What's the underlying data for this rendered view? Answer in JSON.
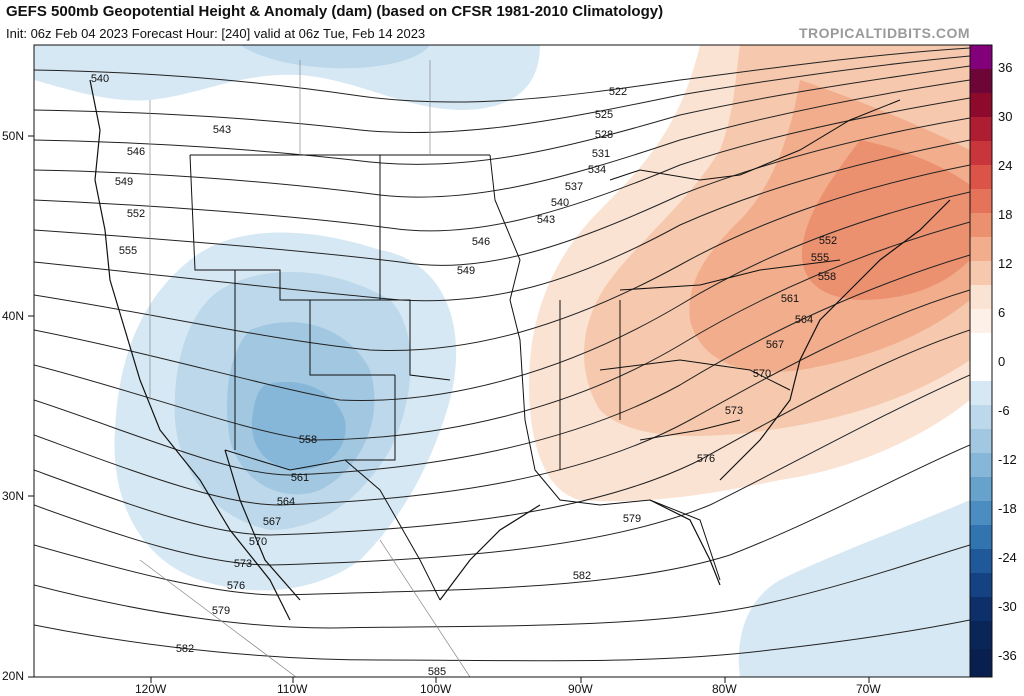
{
  "header": {
    "title": "GEFS 500mb Geopotential Height & Anomaly (dam) (based on CFSR 1981-2010 Climatology)",
    "subtitle": "Init: 06z Feb 04 2023   Forecast Hour: [240]   valid at 06z Tue, Feb 14 2023",
    "brand": "TROPICALTIDBITS.COM"
  },
  "axes": {
    "latitudes": [
      "50N",
      "40N",
      "30N",
      "20N"
    ],
    "longitudes": [
      "120W",
      "110W",
      "100W",
      "90W",
      "80W",
      "70W"
    ]
  },
  "colorbar": {
    "ticks": [
      "36",
      "30",
      "24",
      "18",
      "12",
      "6",
      "0",
      "-6",
      "-12",
      "-18",
      "-24",
      "-30",
      "-36"
    ],
    "positive_colors": [
      "#fbe3d4",
      "#f6c8ad",
      "#f1ad8c",
      "#eb9170",
      "#e4735a",
      "#dc5447",
      "#c8353a",
      "#ad1e33",
      "#8d0a2c",
      "#6d0636",
      "#82007a"
    ],
    "negative_colors": [
      "#d6e8f3",
      "#bcd8ea",
      "#a2c8e1",
      "#86b6d8",
      "#67a2cd",
      "#4b8dc1",
      "#3274b0",
      "#20599a",
      "#154282",
      "#0d2f6a",
      "#081f50"
    ]
  },
  "contours": {
    "labels": [
      "540",
      "543",
      "546",
      "549",
      "552",
      "555",
      "522",
      "525",
      "528",
      "531",
      "534",
      "537",
      "540",
      "543",
      "546",
      "549",
      "552",
      "555",
      "558",
      "561",
      "564",
      "567",
      "570",
      "573",
      "576",
      "579",
      "582",
      "585",
      "558",
      "561",
      "564",
      "567",
      "570",
      "573",
      "576",
      "579",
      "582"
    ]
  },
  "anomaly_regions": {
    "trough_west": "negative",
    "ridge_east": "positive",
    "atlantic_southeast": "negative"
  }
}
